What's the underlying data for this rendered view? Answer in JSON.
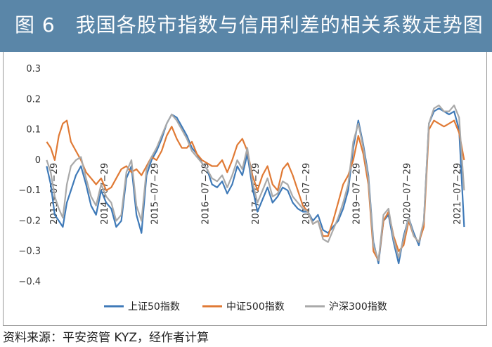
{
  "figure": {
    "title": "图 6　我国各股市指数与信用利差的相关系数走势图",
    "source": "资料来源：平安资管 KYZ，经作者计算"
  },
  "chart_data": {
    "type": "line",
    "title": "我国各股市指数与信用利差的相关系数走势图",
    "xlabel": "",
    "ylabel": "",
    "ylim": [
      -0.4,
      0.3
    ],
    "yticks": [
      0.3,
      0.2,
      0.1,
      0,
      -0.1,
      -0.2,
      -0.3,
      -0.4
    ],
    "ytick_labels": [
      "0.3",
      "0.2",
      "0.1",
      "0",
      "−0.1",
      "−0.2",
      "−0.3",
      "−0.4"
    ],
    "xlim": [
      2013.4,
      2021.75
    ],
    "xticks": [
      {
        "x": 2013.57,
        "label": "2013−07−29"
      },
      {
        "x": 2014.57,
        "label": "2014−07−29"
      },
      {
        "x": 2015.57,
        "label": "2015−07−29"
      },
      {
        "x": 2016.57,
        "label": "2016−07−29"
      },
      {
        "x": 2017.57,
        "label": "2017−07−29"
      },
      {
        "x": 2018.57,
        "label": "2018−07−29"
      },
      {
        "x": 2019.57,
        "label": "2019−07−29"
      },
      {
        "x": 2020.57,
        "label": "2020−07−29"
      },
      {
        "x": 2021.57,
        "label": "2021−07−29"
      }
    ],
    "grid": false,
    "legend_position": "bottom",
    "series": [
      {
        "name": "上证50指数",
        "color": "#3f7ab8",
        "x": [
          2013.42,
          2013.5,
          2013.58,
          2013.66,
          2013.74,
          2013.82,
          2013.9,
          2014.0,
          2014.1,
          2014.2,
          2014.3,
          2014.4,
          2014.5,
          2014.6,
          2014.7,
          2014.8,
          2014.9,
          2015.0,
          2015.1,
          2015.2,
          2015.3,
          2015.4,
          2015.5,
          2015.6,
          2015.7,
          2015.8,
          2015.9,
          2016.0,
          2016.1,
          2016.2,
          2016.3,
          2016.4,
          2016.5,
          2016.6,
          2016.7,
          2016.8,
          2016.9,
          2017.0,
          2017.1,
          2017.2,
          2017.3,
          2017.4,
          2017.5,
          2017.6,
          2017.7,
          2017.8,
          2017.9,
          2018.0,
          2018.1,
          2018.2,
          2018.3,
          2018.4,
          2018.5,
          2018.6,
          2018.7,
          2018.8,
          2018.9,
          2019.0,
          2019.1,
          2019.2,
          2019.3,
          2019.4,
          2019.5,
          2019.6,
          2019.7,
          2019.8,
          2019.9,
          2020.0,
          2020.1,
          2020.2,
          2020.3,
          2020.4,
          2020.5,
          2020.6,
          2020.7,
          2020.8,
          2020.9,
          2021.0,
          2021.1,
          2021.2,
          2021.3,
          2021.4,
          2021.5,
          2021.6,
          2021.7
        ],
        "values": [
          -0.02,
          -0.08,
          -0.18,
          -0.2,
          -0.22,
          -0.14,
          -0.1,
          -0.05,
          -0.02,
          -0.08,
          -0.15,
          -0.18,
          -0.1,
          -0.14,
          -0.16,
          -0.22,
          -0.2,
          -0.06,
          -0.02,
          -0.18,
          -0.24,
          -0.05,
          0.0,
          0.03,
          0.07,
          0.12,
          0.15,
          0.14,
          0.11,
          0.08,
          0.04,
          0.02,
          -0.01,
          -0.03,
          -0.08,
          -0.09,
          -0.07,
          -0.11,
          -0.08,
          -0.02,
          -0.05,
          0.02,
          -0.09,
          -0.17,
          -0.13,
          -0.09,
          -0.14,
          -0.12,
          -0.09,
          -0.1,
          -0.14,
          -0.16,
          -0.17,
          -0.17,
          -0.2,
          -0.18,
          -0.23,
          -0.24,
          -0.22,
          -0.2,
          -0.16,
          -0.1,
          0.04,
          0.13,
          0.05,
          -0.05,
          -0.27,
          -0.34,
          -0.2,
          -0.18,
          -0.27,
          -0.34,
          -0.25,
          -0.19,
          -0.24,
          -0.28,
          -0.2,
          0.12,
          0.16,
          0.17,
          0.16,
          0.15,
          0.16,
          0.1,
          -0.22
        ]
      },
      {
        "name": "中证500指数",
        "color": "#e07a35",
        "x": [
          2013.42,
          2013.5,
          2013.58,
          2013.66,
          2013.74,
          2013.82,
          2013.9,
          2014.0,
          2014.1,
          2014.2,
          2014.3,
          2014.4,
          2014.5,
          2014.6,
          2014.7,
          2014.8,
          2014.9,
          2015.0,
          2015.1,
          2015.2,
          2015.3,
          2015.4,
          2015.5,
          2015.6,
          2015.7,
          2015.8,
          2015.9,
          2016.0,
          2016.1,
          2016.2,
          2016.3,
          2016.4,
          2016.5,
          2016.6,
          2016.7,
          2016.8,
          2016.9,
          2017.0,
          2017.1,
          2017.2,
          2017.3,
          2017.4,
          2017.5,
          2017.6,
          2017.7,
          2017.8,
          2017.9,
          2018.0,
          2018.1,
          2018.2,
          2018.3,
          2018.4,
          2018.5,
          2018.6,
          2018.7,
          2018.8,
          2018.9,
          2019.0,
          2019.1,
          2019.2,
          2019.3,
          2019.4,
          2019.5,
          2019.6,
          2019.7,
          2019.8,
          2019.9,
          2020.0,
          2020.1,
          2020.2,
          2020.3,
          2020.4,
          2020.5,
          2020.6,
          2020.7,
          2020.8,
          2020.9,
          2021.0,
          2021.1,
          2021.2,
          2021.3,
          2021.4,
          2021.5,
          2021.6,
          2021.7
        ],
        "values": [
          0.06,
          0.04,
          0.0,
          0.08,
          0.12,
          0.13,
          0.06,
          0.03,
          0.0,
          -0.04,
          -0.06,
          -0.08,
          -0.06,
          -0.1,
          -0.09,
          -0.06,
          -0.03,
          -0.02,
          -0.04,
          -0.03,
          -0.05,
          -0.02,
          0.01,
          0.0,
          0.03,
          0.08,
          0.11,
          0.07,
          0.04,
          0.04,
          0.06,
          0.02,
          0.0,
          -0.01,
          -0.02,
          -0.02,
          0.0,
          -0.04,
          0.0,
          0.05,
          0.07,
          0.03,
          -0.05,
          -0.1,
          -0.05,
          -0.02,
          -0.08,
          -0.1,
          -0.03,
          -0.01,
          -0.05,
          -0.1,
          -0.15,
          -0.17,
          -0.21,
          -0.2,
          -0.25,
          -0.25,
          -0.2,
          -0.14,
          -0.08,
          -0.05,
          0.0,
          0.08,
          0.02,
          -0.08,
          -0.3,
          -0.33,
          -0.2,
          -0.17,
          -0.25,
          -0.3,
          -0.28,
          -0.2,
          -0.25,
          -0.27,
          -0.22,
          0.1,
          0.13,
          0.12,
          0.11,
          0.12,
          0.13,
          0.09,
          0.0
        ]
      },
      {
        "name": "沪深300指数",
        "color": "#a9a9a9",
        "x": [
          2013.42,
          2013.5,
          2013.58,
          2013.66,
          2013.74,
          2013.82,
          2013.9,
          2014.0,
          2014.1,
          2014.2,
          2014.3,
          2014.4,
          2014.5,
          2014.6,
          2014.7,
          2014.8,
          2014.9,
          2015.0,
          2015.1,
          2015.2,
          2015.3,
          2015.4,
          2015.5,
          2015.6,
          2015.7,
          2015.8,
          2015.9,
          2016.0,
          2016.1,
          2016.2,
          2016.3,
          2016.4,
          2016.5,
          2016.6,
          2016.7,
          2016.8,
          2016.9,
          2017.0,
          2017.1,
          2017.2,
          2017.3,
          2017.4,
          2017.5,
          2017.6,
          2017.7,
          2017.8,
          2017.9,
          2018.0,
          2018.1,
          2018.2,
          2018.3,
          2018.4,
          2018.5,
          2018.6,
          2018.7,
          2018.8,
          2018.9,
          2019.0,
          2019.1,
          2019.2,
          2019.3,
          2019.4,
          2019.5,
          2019.6,
          2019.7,
          2019.8,
          2019.9,
          2020.0,
          2020.1,
          2020.2,
          2020.3,
          2020.4,
          2020.5,
          2020.6,
          2020.7,
          2020.8,
          2020.9,
          2021.0,
          2021.1,
          2021.2,
          2021.3,
          2021.4,
          2021.5,
          2021.6,
          2021.7
        ],
        "values": [
          0.0,
          -0.04,
          -0.12,
          -0.16,
          -0.19,
          -0.08,
          -0.02,
          0.0,
          0.01,
          -0.06,
          -0.12,
          -0.15,
          -0.08,
          -0.12,
          -0.14,
          -0.2,
          -0.18,
          -0.04,
          0.0,
          -0.15,
          -0.2,
          -0.03,
          0.01,
          0.04,
          0.08,
          0.12,
          0.15,
          0.13,
          0.1,
          0.07,
          0.03,
          0.01,
          -0.01,
          -0.03,
          -0.06,
          -0.07,
          -0.05,
          -0.09,
          -0.05,
          0.0,
          -0.03,
          0.04,
          -0.07,
          -0.14,
          -0.1,
          -0.06,
          -0.12,
          -0.11,
          -0.07,
          -0.08,
          -0.12,
          -0.14,
          -0.16,
          -0.17,
          -0.21,
          -0.2,
          -0.26,
          -0.27,
          -0.23,
          -0.19,
          -0.14,
          -0.08,
          0.06,
          0.12,
          0.04,
          -0.06,
          -0.28,
          -0.33,
          -0.18,
          -0.16,
          -0.26,
          -0.32,
          -0.26,
          -0.19,
          -0.25,
          -0.27,
          -0.2,
          0.12,
          0.17,
          0.18,
          0.16,
          0.16,
          0.18,
          0.14,
          -0.1
        ]
      }
    ]
  }
}
